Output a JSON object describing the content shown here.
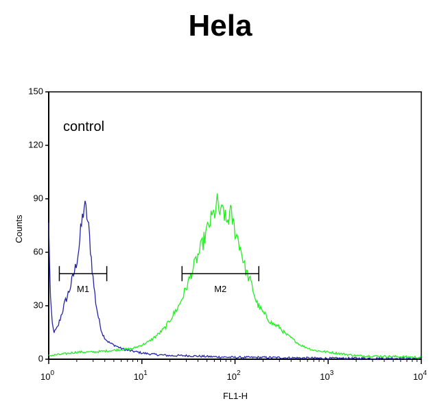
{
  "chart_data": {
    "type": "line",
    "title": "Hela",
    "xlabel": "FL1-H",
    "ylabel": "Counts",
    "x_scale": "log",
    "xlim": [
      1,
      10000
    ],
    "ylim": [
      0,
      150
    ],
    "x_ticks": [
      {
        "value": 1,
        "base": "10",
        "exp": "0"
      },
      {
        "value": 10,
        "base": "10",
        "exp": "1"
      },
      {
        "value": 100,
        "base": "10",
        "exp": "2"
      },
      {
        "value": 1000,
        "base": "10",
        "exp": "3"
      },
      {
        "value": 10000,
        "base": "10",
        "exp": "4"
      }
    ],
    "y_ticks": [
      "0",
      "30",
      "60",
      "90",
      "120",
      "150"
    ],
    "annotation": "control",
    "grid": false,
    "series": [
      {
        "color": "#2222aa",
        "x": [
          1.0,
          1.05,
          1.1,
          1.15,
          1.25,
          1.35,
          1.5,
          1.65,
          1.8,
          1.95,
          2.1,
          2.25,
          2.4,
          2.55,
          2.7,
          2.85,
          3.0,
          3.2,
          3.4,
          3.6,
          3.8,
          4.0,
          4.3,
          4.6,
          5.0,
          5.5,
          6.0,
          7.0,
          8.0,
          9.0,
          10,
          12,
          15,
          20,
          30,
          50,
          100,
          200,
          1000,
          10000
        ],
        "y": [
          75,
          30,
          18,
          15,
          18,
          24,
          32,
          38,
          45,
          52,
          62,
          75,
          86,
          82,
          72,
          58,
          45,
          32,
          24,
          18,
          14,
          12,
          10,
          9,
          8,
          7,
          6,
          5,
          4.5,
          4,
          3.5,
          3,
          2.5,
          2,
          2,
          1.5,
          1,
          1,
          0.5,
          0.5
        ]
      },
      {
        "color": "#22ee22",
        "x": [
          1.0,
          1.5,
          2,
          3,
          5,
          8,
          10,
          12,
          15,
          18,
          20,
          25,
          30,
          35,
          40,
          45,
          50,
          55,
          60,
          65,
          70,
          75,
          80,
          90,
          100,
          110,
          120,
          130,
          150,
          170,
          200,
          250,
          300,
          350,
          400,
          500,
          700,
          1000,
          2000,
          5000,
          10000
        ],
        "y": [
          2,
          3,
          4,
          4,
          5,
          6,
          8,
          10,
          14,
          18,
          22,
          30,
          40,
          50,
          58,
          65,
          72,
          78,
          82,
          88,
          80,
          85,
          76,
          82,
          72,
          66,
          58,
          50,
          42,
          32,
          26,
          20,
          18,
          14,
          12,
          8,
          5,
          4,
          2,
          1.5,
          1
        ]
      }
    ],
    "markers": [
      {
        "label": "M1",
        "x_start": 1.3,
        "x_end": 4.2,
        "y": 48
      },
      {
        "label": "M2",
        "x_start": 27,
        "x_end": 180,
        "y": 48
      }
    ]
  }
}
